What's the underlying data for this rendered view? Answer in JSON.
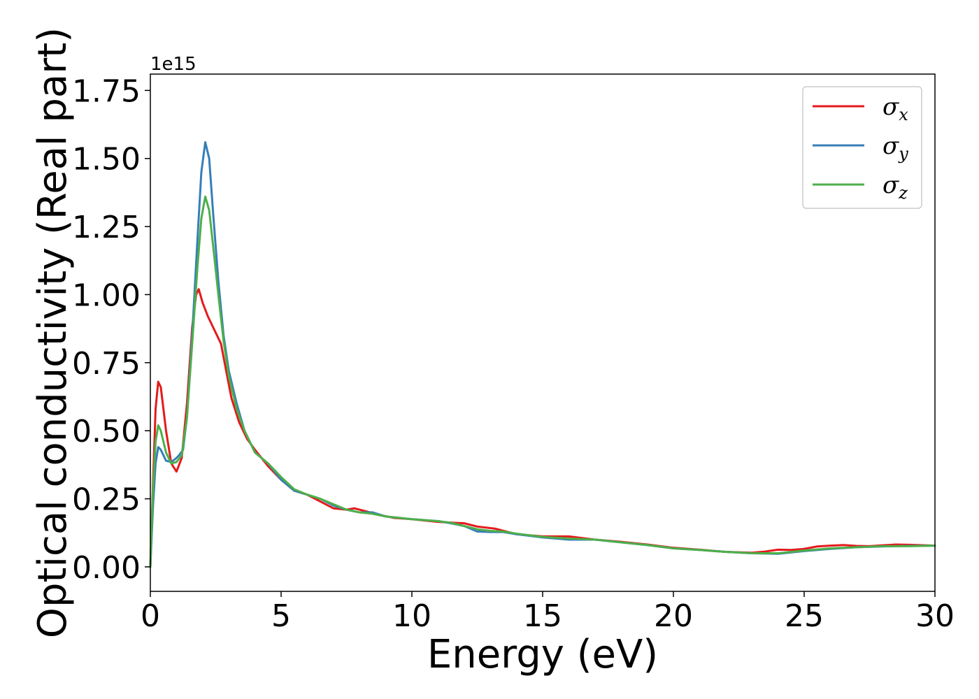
{
  "chart_data": {
    "type": "line",
    "title": "",
    "xlabel": "Energy (eV)",
    "ylabel": "Optical conductivity (Real part)",
    "y_offset_label": "1e15",
    "y_scale": 1000000000000000.0,
    "xlim": [
      0,
      30
    ],
    "ylim": [
      -0.09,
      1.81
    ],
    "grid": false,
    "legend_position": "top-right",
    "x_ticks": [
      0,
      5,
      10,
      15,
      20,
      25,
      30
    ],
    "x_tick_labels": [
      "0",
      "5",
      "10",
      "15",
      "20",
      "25",
      "30"
    ],
    "y_ticks": [
      0,
      0.25,
      0.5,
      0.75,
      1.0,
      1.25,
      1.5,
      1.75
    ],
    "y_tick_labels": [
      "0.00",
      "0.25",
      "0.50",
      "0.75",
      "1.00",
      "1.25",
      "1.50",
      "1.75"
    ],
    "series": [
      {
        "name": "σx",
        "symbol": "σ",
        "subscript": "x",
        "color": "#e41a1c",
        "points": [
          [
            0.0,
            0.0
          ],
          [
            0.1,
            0.3
          ],
          [
            0.2,
            0.58
          ],
          [
            0.3,
            0.68
          ],
          [
            0.4,
            0.66
          ],
          [
            0.6,
            0.5
          ],
          [
            0.8,
            0.38
          ],
          [
            1.0,
            0.35
          ],
          [
            1.2,
            0.4
          ],
          [
            1.4,
            0.6
          ],
          [
            1.6,
            0.88
          ],
          [
            1.75,
            1.0
          ],
          [
            1.85,
            1.02
          ],
          [
            2.0,
            0.97
          ],
          [
            2.2,
            0.92
          ],
          [
            2.5,
            0.86
          ],
          [
            2.7,
            0.82
          ],
          [
            2.9,
            0.72
          ],
          [
            3.1,
            0.62
          ],
          [
            3.4,
            0.53
          ],
          [
            3.7,
            0.47
          ],
          [
            4.0,
            0.43
          ],
          [
            4.5,
            0.37
          ],
          [
            5.0,
            0.32
          ],
          [
            5.5,
            0.28
          ],
          [
            6.0,
            0.265
          ],
          [
            6.5,
            0.24
          ],
          [
            7.0,
            0.215
          ],
          [
            7.5,
            0.21
          ],
          [
            7.8,
            0.215
          ],
          [
            8.2,
            0.205
          ],
          [
            8.8,
            0.19
          ],
          [
            9.3,
            0.18
          ],
          [
            10.0,
            0.175
          ],
          [
            11.0,
            0.165
          ],
          [
            12.0,
            0.16
          ],
          [
            12.5,
            0.148
          ],
          [
            13.2,
            0.14
          ],
          [
            14.0,
            0.12
          ],
          [
            15.0,
            0.112
          ],
          [
            16.0,
            0.112
          ],
          [
            17.0,
            0.1
          ],
          [
            18.0,
            0.092
          ],
          [
            19.0,
            0.082
          ],
          [
            20.0,
            0.07
          ],
          [
            21.0,
            0.063
          ],
          [
            22.0,
            0.055
          ],
          [
            23.0,
            0.052
          ],
          [
            23.5,
            0.056
          ],
          [
            24.0,
            0.063
          ],
          [
            24.5,
            0.062
          ],
          [
            25.0,
            0.066
          ],
          [
            25.5,
            0.075
          ],
          [
            26.0,
            0.078
          ],
          [
            26.5,
            0.08
          ],
          [
            27.0,
            0.077
          ],
          [
            27.5,
            0.076
          ],
          [
            28.0,
            0.079
          ],
          [
            28.5,
            0.082
          ],
          [
            29.0,
            0.081
          ],
          [
            30.0,
            0.078
          ]
        ]
      },
      {
        "name": "σy",
        "symbol": "σ",
        "subscript": "y",
        "color": "#377eb8",
        "points": [
          [
            0.0,
            0.0
          ],
          [
            0.1,
            0.22
          ],
          [
            0.2,
            0.38
          ],
          [
            0.3,
            0.44
          ],
          [
            0.4,
            0.43
          ],
          [
            0.6,
            0.39
          ],
          [
            0.8,
            0.385
          ],
          [
            1.0,
            0.4
          ],
          [
            1.1,
            0.41
          ],
          [
            1.25,
            0.43
          ],
          [
            1.4,
            0.55
          ],
          [
            1.6,
            0.85
          ],
          [
            1.8,
            1.2
          ],
          [
            1.95,
            1.45
          ],
          [
            2.1,
            1.56
          ],
          [
            2.25,
            1.5
          ],
          [
            2.4,
            1.3
          ],
          [
            2.6,
            1.05
          ],
          [
            2.8,
            0.85
          ],
          [
            3.0,
            0.72
          ],
          [
            3.3,
            0.6
          ],
          [
            3.6,
            0.5
          ],
          [
            4.0,
            0.42
          ],
          [
            4.5,
            0.38
          ],
          [
            5.0,
            0.32
          ],
          [
            5.5,
            0.28
          ],
          [
            6.0,
            0.265
          ],
          [
            6.5,
            0.25
          ],
          [
            7.0,
            0.225
          ],
          [
            7.5,
            0.21
          ],
          [
            8.0,
            0.2
          ],
          [
            8.5,
            0.2
          ],
          [
            9.0,
            0.185
          ],
          [
            10.0,
            0.175
          ],
          [
            11.0,
            0.168
          ],
          [
            11.5,
            0.16
          ],
          [
            12.0,
            0.15
          ],
          [
            12.5,
            0.13
          ],
          [
            13.0,
            0.128
          ],
          [
            13.5,
            0.128
          ],
          [
            14.0,
            0.12
          ],
          [
            15.0,
            0.108
          ],
          [
            16.0,
            0.1
          ],
          [
            17.0,
            0.1
          ],
          [
            18.0,
            0.09
          ],
          [
            19.0,
            0.08
          ],
          [
            20.0,
            0.068
          ],
          [
            21.0,
            0.062
          ],
          [
            22.0,
            0.055
          ],
          [
            23.0,
            0.05
          ],
          [
            24.0,
            0.048
          ],
          [
            25.0,
            0.058
          ],
          [
            26.0,
            0.066
          ],
          [
            27.0,
            0.072
          ],
          [
            28.0,
            0.075
          ],
          [
            29.0,
            0.077
          ],
          [
            30.0,
            0.078
          ]
        ]
      },
      {
        "name": "σz",
        "symbol": "σ",
        "subscript": "z",
        "color": "#4daf4a",
        "points": [
          [
            0.0,
            0.0
          ],
          [
            0.1,
            0.28
          ],
          [
            0.2,
            0.46
          ],
          [
            0.3,
            0.52
          ],
          [
            0.4,
            0.5
          ],
          [
            0.6,
            0.42
          ],
          [
            0.8,
            0.38
          ],
          [
            1.0,
            0.385
          ],
          [
            1.2,
            0.41
          ],
          [
            1.4,
            0.55
          ],
          [
            1.6,
            0.82
          ],
          [
            1.8,
            1.1
          ],
          [
            1.95,
            1.28
          ],
          [
            2.1,
            1.36
          ],
          [
            2.25,
            1.31
          ],
          [
            2.4,
            1.18
          ],
          [
            2.6,
            1.0
          ],
          [
            2.8,
            0.83
          ],
          [
            3.0,
            0.7
          ],
          [
            3.3,
            0.58
          ],
          [
            3.6,
            0.5
          ],
          [
            4.0,
            0.42
          ],
          [
            4.5,
            0.38
          ],
          [
            5.0,
            0.33
          ],
          [
            5.5,
            0.285
          ],
          [
            6.0,
            0.265
          ],
          [
            6.5,
            0.25
          ],
          [
            7.0,
            0.23
          ],
          [
            7.5,
            0.21
          ],
          [
            8.0,
            0.2
          ],
          [
            8.5,
            0.195
          ],
          [
            9.0,
            0.185
          ],
          [
            10.0,
            0.175
          ],
          [
            11.0,
            0.168
          ],
          [
            11.5,
            0.162
          ],
          [
            12.0,
            0.15
          ],
          [
            12.5,
            0.138
          ],
          [
            13.0,
            0.132
          ],
          [
            13.5,
            0.13
          ],
          [
            14.0,
            0.122
          ],
          [
            15.0,
            0.11
          ],
          [
            16.0,
            0.104
          ],
          [
            17.0,
            0.1
          ],
          [
            18.0,
            0.09
          ],
          [
            19.0,
            0.08
          ],
          [
            20.0,
            0.068
          ],
          [
            21.0,
            0.062
          ],
          [
            22.0,
            0.055
          ],
          [
            23.0,
            0.05
          ],
          [
            24.0,
            0.05
          ],
          [
            25.0,
            0.06
          ],
          [
            26.0,
            0.068
          ],
          [
            27.0,
            0.072
          ],
          [
            28.0,
            0.076
          ],
          [
            29.0,
            0.076
          ],
          [
            30.0,
            0.078
          ]
        ]
      }
    ]
  }
}
